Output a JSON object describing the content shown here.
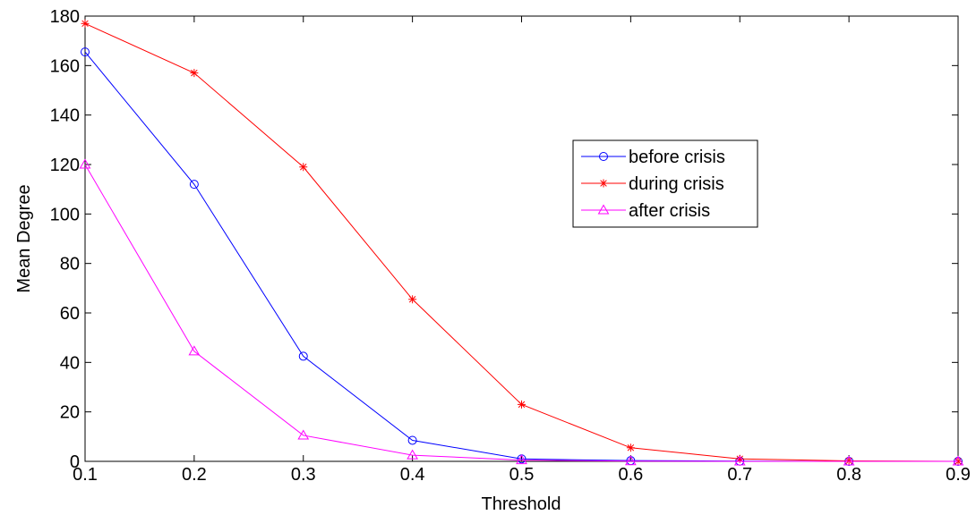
{
  "chart_data": {
    "type": "line",
    "title": "",
    "xlabel": "Threshold",
    "ylabel": "Mean Degree",
    "xlim": [
      0.1,
      0.9
    ],
    "ylim": [
      0,
      180
    ],
    "xticks": [
      "0.1",
      "0.2",
      "0.3",
      "0.4",
      "0.5",
      "0.6",
      "0.7",
      "0.8",
      "0.9"
    ],
    "yticks": [
      "0",
      "20",
      "40",
      "60",
      "80",
      "100",
      "120",
      "140",
      "160",
      "180"
    ],
    "grid": false,
    "legend_position": "right",
    "x": [
      0.1,
      0.2,
      0.3,
      0.4,
      0.5,
      0.6,
      0.7,
      0.8,
      0.9
    ],
    "series": [
      {
        "name": "before crisis",
        "color": "#0000ff",
        "marker": "circle",
        "values": [
          165.5,
          112,
          42.5,
          8.5,
          1,
          0.3,
          0.1,
          0,
          0
        ]
      },
      {
        "name": "during crisis",
        "color": "#ff0000",
        "marker": "asterisk",
        "values": [
          177,
          157,
          119,
          65.5,
          23,
          5.5,
          1,
          0.2,
          0
        ]
      },
      {
        "name": "after crisis",
        "color": "#ff00ff",
        "marker": "triangle",
        "values": [
          120,
          44.5,
          10.5,
          2.5,
          0.5,
          0.1,
          0,
          0,
          0
        ]
      }
    ]
  }
}
